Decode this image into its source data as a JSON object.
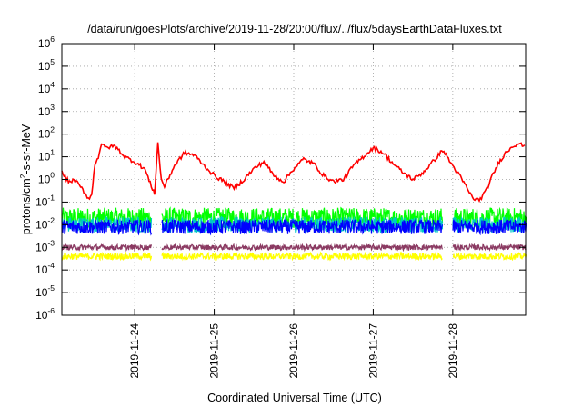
{
  "chart_data": {
    "type": "line",
    "title": "/data/run/goesPlots/archive/2019-11-28/20:00/flux/../flux/5daysEarthDataFluxes.txt",
    "xlabel": "Coordinated Universal Time (UTC)",
    "ylabel": "protons/cm²-s-sr-MeV",
    "ylabel_parts": {
      "a": "protons/cm",
      "sup": "2",
      "b": "-s-sr-MeV"
    },
    "yscale": "log",
    "ylim": [
      1e-06,
      1000000.0
    ],
    "y_ticks": [
      {
        "value": -6,
        "base": "10",
        "exp": "-6"
      },
      {
        "value": -5,
        "base": "10",
        "exp": "-5"
      },
      {
        "value": -4,
        "base": "10",
        "exp": "-4"
      },
      {
        "value": -3,
        "base": "10",
        "exp": "-3"
      },
      {
        "value": -2,
        "base": "10",
        "exp": "-2"
      },
      {
        "value": -1,
        "base": "10",
        "exp": "-1"
      },
      {
        "value": 0,
        "base": "10",
        "exp": "0"
      },
      {
        "value": 1,
        "base": "10",
        "exp": "1"
      },
      {
        "value": 2,
        "base": "10",
        "exp": "2"
      },
      {
        "value": 3,
        "base": "10",
        "exp": "3"
      },
      {
        "value": 4,
        "base": "10",
        "exp": "4"
      },
      {
        "value": 5,
        "base": "10",
        "exp": "5"
      },
      {
        "value": 6,
        "base": "10",
        "exp": "6"
      }
    ],
    "xlim": [
      "2019-11-23T02:00",
      "2019-11-28T22:00"
    ],
    "x_ticks": [
      {
        "label": "2019-11-24",
        "value": "2019-11-24T00:00"
      },
      {
        "label": "2019-11-25",
        "value": "2019-11-25T00:00"
      },
      {
        "label": "2019-11-26",
        "value": "2019-11-26T00:00"
      },
      {
        "label": "2019-11-27",
        "value": "2019-11-27T00:00"
      },
      {
        "label": "2019-11-28",
        "value": "2019-11-28T00:00"
      }
    ],
    "grid": true,
    "series": [
      {
        "color": "#ff0000",
        "x": [
          "2019-11-23T02:00",
          "2019-11-23T04:00",
          "2019-11-23T06:00",
          "2019-11-23T08:00",
          "2019-11-23T10:00",
          "2019-11-23T11:00",
          "2019-11-23T12:00",
          "2019-11-23T13:00",
          "2019-11-23T14:00",
          "2019-11-23T15:00",
          "2019-11-23T18:00",
          "2019-11-23T21:00",
          "2019-11-24T00:00",
          "2019-11-24T03:00",
          "2019-11-24T05:00",
          "2019-11-24T06:00",
          "2019-11-24T07:00",
          "2019-11-24T08:00",
          "2019-11-24T09:00",
          "2019-11-24T12:00",
          "2019-11-24T15:00",
          "2019-11-24T18:00",
          "2019-11-24T21:00",
          "2019-11-25T00:00",
          "2019-11-25T03:00",
          "2019-11-25T06:00",
          "2019-11-25T09:00",
          "2019-11-25T12:00",
          "2019-11-25T15:00",
          "2019-11-25T18:00",
          "2019-11-25T21:00",
          "2019-11-26T00:00",
          "2019-11-26T03:00",
          "2019-11-26T06:00",
          "2019-11-26T09:00",
          "2019-11-26T12:00",
          "2019-11-26T15:00",
          "2019-11-26T18:00",
          "2019-11-26T21:00",
          "2019-11-27T00:00",
          "2019-11-27T03:00",
          "2019-11-27T06:00",
          "2019-11-27T09:00",
          "2019-11-27T12:00",
          "2019-11-27T15:00",
          "2019-11-27T18:00",
          "2019-11-27T21:00",
          "2019-11-28T00:00",
          "2019-11-28T02:00",
          "2019-11-28T04:00",
          "2019-11-28T06:00",
          "2019-11-28T08:00",
          "2019-11-28T10:00",
          "2019-11-28T12:00",
          "2019-11-28T14:00",
          "2019-11-28T16:00",
          "2019-11-28T18:00",
          "2019-11-28T20:00",
          "2019-11-28T22:00"
        ],
        "values": [
          2,
          0.8,
          0.9,
          0.4,
          0.15,
          0.2,
          5,
          10,
          40,
          25,
          30,
          10,
          6,
          3,
          0.5,
          0.25,
          40,
          1,
          0.5,
          4,
          15,
          12,
          4,
          1.5,
          0.8,
          0.4,
          1,
          3,
          6,
          1.5,
          0.8,
          3,
          8,
          5,
          1.5,
          0.8,
          1,
          4,
          10,
          25,
          15,
          5,
          2,
          1,
          2,
          6,
          20,
          4,
          1.5,
          0.5,
          0.15,
          0.12,
          0.3,
          1.5,
          6,
          15,
          30,
          40,
          25
        ]
      },
      {
        "color": "#00ff00",
        "x": [
          "2019-11-23T02:00",
          "2019-11-28T22:00"
        ],
        "values": [
          0.02,
          0.02
        ]
      },
      {
        "color": "#00c8c8",
        "x": [
          "2019-11-23T02:00",
          "2019-11-28T22:00"
        ],
        "values": [
          0.01,
          0.01
        ]
      },
      {
        "color": "#0000ff",
        "x": [
          "2019-11-23T02:00",
          "2019-11-28T22:00"
        ],
        "values": [
          0.008,
          0.008
        ]
      },
      {
        "color": "#8b3a62",
        "x": [
          "2019-11-23T02:00",
          "2019-11-28T22:00"
        ],
        "values": [
          0.001,
          0.001
        ]
      },
      {
        "color": "#ffff00",
        "x": [
          "2019-11-23T02:00",
          "2019-11-28T22:00"
        ],
        "values": [
          0.0004,
          0.0004
        ]
      }
    ]
  }
}
